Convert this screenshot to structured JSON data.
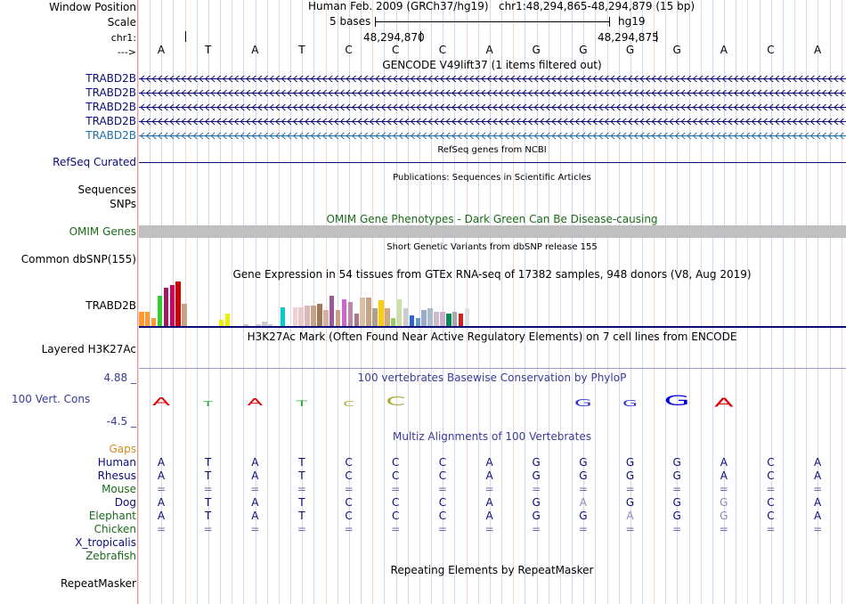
{
  "header": {
    "window_position_label": "Window Position",
    "scale_label": "Scale",
    "chr_label": "chr1:",
    "arrow_label": "--->",
    "assembly": "Human Feb. 2009 (GRCh37/hg19)",
    "position": "chr1:48,294,865-48,294,879 (15 bp)",
    "scale_text": "5 bases",
    "scale_db": "hg19",
    "coord_ticks": [
      "48,294,870",
      "48,294,875"
    ]
  },
  "sequence": [
    "A",
    "T",
    "A",
    "T",
    "C",
    "C",
    "C",
    "A",
    "G",
    "G",
    "G",
    "G",
    "A",
    "C",
    "A"
  ],
  "gencode": {
    "title": "GENCODE V49lift37 (1 items filtered out)",
    "transcripts": [
      "TRABD2B",
      "TRABD2B",
      "TRABD2B",
      "TRABD2B",
      "TRABD2B"
    ],
    "colors": [
      "#0c0c78",
      "#0c0c78",
      "#0c0c78",
      "#0c0c78",
      "#1f6fa8"
    ]
  },
  "refseq": {
    "title": "RefSeq genes from NCBI",
    "label": "RefSeq Curated"
  },
  "publications": {
    "title": "Publications: Sequences in Scientific Articles",
    "label1": "Sequences",
    "label2": "SNPs"
  },
  "omim": {
    "title": "OMIM Gene Phenotypes - Dark Green Can Be Disease-causing",
    "label": "OMIM Genes"
  },
  "dbsnp": {
    "title": "Short Genetic Variants from dbSNP release 155",
    "label": "Common dbSNP(155)"
  },
  "gtex": {
    "title": "Gene Expression in 54 tissues from GTEx RNA-seq of 17382 samples, 948 donors (V8, Aug 2019)",
    "label": "TRABD2B",
    "values": [
      9,
      9,
      5,
      19,
      24,
      26,
      28,
      14,
      0,
      0,
      0,
      0,
      0,
      4,
      8,
      0,
      0,
      1,
      0,
      1,
      3,
      1,
      0,
      12,
      1,
      12,
      12,
      13,
      13,
      14,
      10,
      19,
      10,
      17,
      15,
      8,
      18,
      18,
      11,
      16,
      11,
      5,
      17,
      11,
      7,
      5,
      10,
      11,
      9,
      9,
      8,
      9,
      8,
      11
    ],
    "colors": [
      "#ff9933",
      "#ff9933",
      "#ff9933",
      "#33cc33",
      "#9e1a5e",
      "#cc0066",
      "#cc0000",
      "#c8a287",
      "#ffff66",
      "#ffff66",
      "#ffff66",
      "#ffff66",
      "#ffff66",
      "#eeee00",
      "#eeee00",
      "#cccccc",
      "#cccccc",
      "#cccccc",
      "#cccccc",
      "#cccccc",
      "#cccccc",
      "#cccccc",
      "#cccccc",
      "#00cccc",
      "#eeeeee",
      "#f0d0d0",
      "#e8c8c8",
      "#d8b8b8",
      "#c8a287",
      "#a0785a",
      "#d8b0a0",
      "#9a5a9a",
      "#c8a287",
      "#cc66cc",
      "#bb88aa",
      "#aa7788",
      "#d8c0a8",
      "#c8a287",
      "#b0a090",
      "#ffcc00",
      "#ccaa88",
      "#99cc66",
      "#cce0a0",
      "#cccccc",
      "#3366cc",
      "#6699cc",
      "#99aacc",
      "#aabbcc",
      "#ccbbcc",
      "#ccaacc",
      "#008855",
      "#aaaaaa",
      "#cc2222",
      "#e0e0e0"
    ]
  },
  "h3k27ac": {
    "title": "H3K27Ac Mark (Often Found Near Active Regulatory Elements) on 7 cell lines from ENCODE",
    "label": "Layered H3K27Ac"
  },
  "phylop": {
    "title": "100 vertebrates Basewise Conservation by PhyloP",
    "label": "100 Vert. Cons",
    "max_label": "4.88 _",
    "min_label": "-4.5 _",
    "values": [
      0.8,
      -0.2,
      0.6,
      -0.3,
      -0.2,
      0.9,
      0,
      0,
      0,
      -0.6,
      -0.4,
      1.2,
      -0.9,
      0,
      0
    ],
    "colors": [
      "#dd0000",
      "#33aa33",
      "#dd0000",
      "#33aa33",
      "#aaaa33",
      "#aaaa33",
      "#000000",
      "#000000",
      "#3333cc",
      "#3333cc",
      "#3333cc",
      "#0000dd",
      "#dd0000",
      "#000000",
      "#000000"
    ]
  },
  "multiz": {
    "title": "Multiz Alignments of 100 Vertebrates",
    "gaps_label": "Gaps",
    "species": [
      {
        "name": "Human",
        "color": "#0c0c78",
        "bases": [
          "A",
          "T",
          "A",
          "T",
          "C",
          "C",
          "C",
          "A",
          "G",
          "G",
          "G",
          "G",
          "A",
          "C",
          "A"
        ]
      },
      {
        "name": "Rhesus",
        "color": "#0c0c78",
        "bases": [
          "A",
          "T",
          "A",
          "T",
          "C",
          "C",
          "C",
          "A",
          "G",
          "G",
          "G",
          "G",
          "A",
          "C",
          "A"
        ]
      },
      {
        "name": "Mouse",
        "color": "#1a6b1a",
        "bases": [
          "=",
          "=",
          "=",
          "=",
          "=",
          "=",
          "=",
          "=",
          "=",
          "=",
          "=",
          "=",
          "=",
          "=",
          "="
        ]
      },
      {
        "name": "Dog",
        "color": "#0c0c78",
        "bases": [
          "A",
          "T",
          "A",
          "T",
          "C",
          "C",
          "C",
          "A",
          "G",
          "A",
          "G",
          "G",
          "G",
          "C",
          "A"
        ]
      },
      {
        "name": "Elephant",
        "color": "#1a6b1a",
        "bases": [
          "A",
          "T",
          "A",
          "T",
          "C",
          "C",
          "C",
          "A",
          "G",
          "G",
          "A",
          "G",
          "G",
          "C",
          "A"
        ]
      },
      {
        "name": "Chicken",
        "color": "#1a6b1a",
        "bases": [
          "=",
          "=",
          "=",
          "=",
          "=",
          "=",
          "=",
          "=",
          "=",
          "=",
          "=",
          "=",
          "=",
          "=",
          "="
        ]
      },
      {
        "name": "X_tropicalis",
        "color": "#0c0c78",
        "bases": [
          "",
          "",
          "",
          "",
          "",
          "",
          "",
          "",
          "",
          "",
          "",
          "",
          "",
          "",
          ""
        ]
      },
      {
        "name": "Zebrafish",
        "color": "#1a6b1a",
        "bases": [
          "",
          "",
          "",
          "",
          "",
          "",
          "",
          "",
          "",
          "",
          "",
          "",
          "",
          "",
          ""
        ]
      }
    ]
  },
  "repeatmasker": {
    "title": "Repeating Elements by RepeatMasker",
    "label": "RepeatMasker"
  }
}
